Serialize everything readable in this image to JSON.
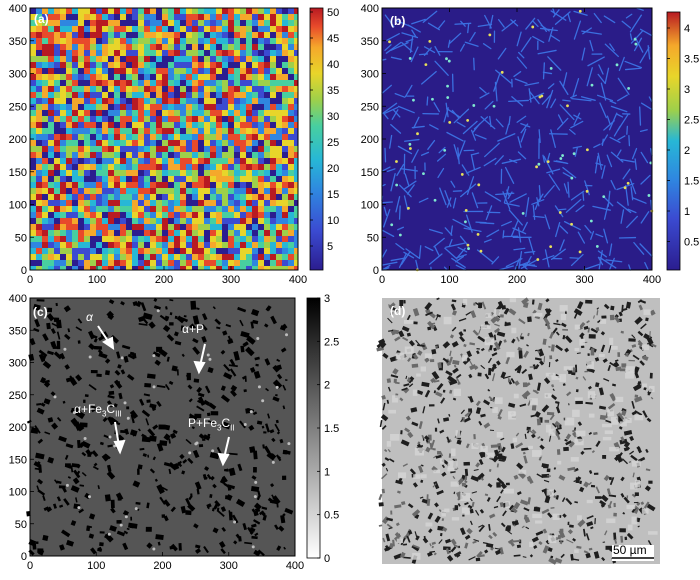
{
  "panels": {
    "a": {
      "label": "(a)",
      "x_ticks": [
        "0",
        "100",
        "200",
        "300",
        "400"
      ],
      "y_ticks": [
        "0",
        "50",
        "100",
        "150",
        "200",
        "250",
        "300",
        "350",
        "400"
      ],
      "colorbar_ticks": [
        "50",
        "45",
        "40",
        "35",
        "30",
        "25",
        "20",
        "15",
        "10",
        "5"
      ]
    },
    "b": {
      "label": "(b)",
      "x_ticks": [
        "0",
        "100",
        "200",
        "300",
        "400"
      ],
      "y_ticks": [
        "0",
        "50",
        "100",
        "150",
        "200",
        "250",
        "300",
        "350",
        "400"
      ],
      "colorbar_ticks": [
        "4",
        "3.5",
        "3",
        "2.5",
        "2",
        "1.5",
        "1",
        "0.5"
      ]
    },
    "c": {
      "label": "(c)",
      "x_ticks": [
        "0",
        "100",
        "200",
        "300",
        "400"
      ],
      "y_ticks": [
        "0",
        "50",
        "100",
        "150",
        "200",
        "250",
        "300",
        "350",
        "400"
      ],
      "colorbar_ticks": [
        "3",
        "2.5",
        "2",
        "1.5",
        "1",
        "0.5",
        "0"
      ],
      "annotations": {
        "alpha": "α",
        "alpha_p": "α+P",
        "alpha_fe3c": "α+Fe3CIII",
        "p_fe3c": "P+Fe3CII"
      }
    },
    "d": {
      "label": "(d)",
      "scale_bar": "50 µm"
    }
  },
  "colors": {
    "jet": [
      "#2b1d8f",
      "#3b4bd1",
      "#2f86e0",
      "#27b7d6",
      "#48cfa0",
      "#9ed04a",
      "#e8d52a",
      "#f5a82b",
      "#e84a2b",
      "#b81a22"
    ],
    "panel_b_bg": "#2a1c88",
    "panel_c_bg": "#555555",
    "panel_d_bg": "#bfbfbf"
  }
}
